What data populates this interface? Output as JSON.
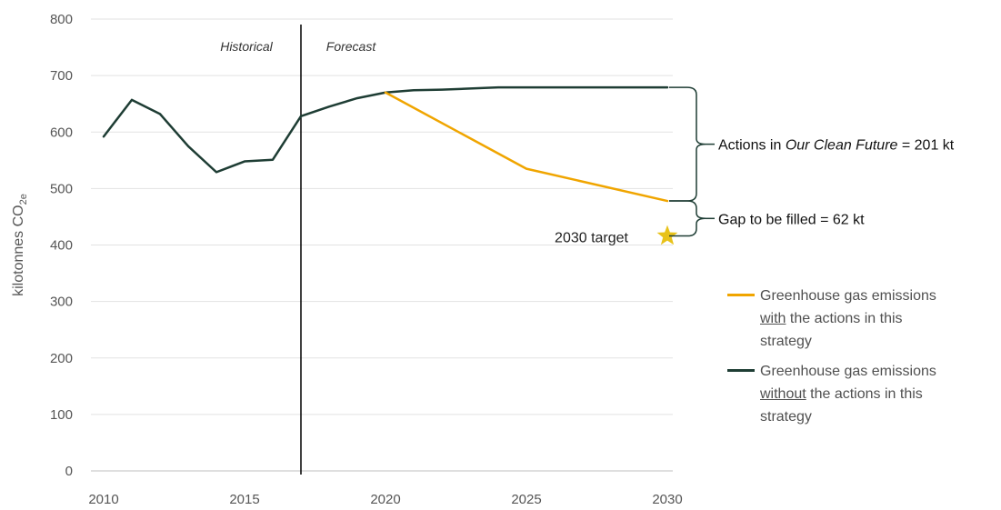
{
  "chart_data": {
    "type": "line",
    "xlim": [
      2010,
      2030
    ],
    "ylim": [
      0,
      800
    ],
    "x_ticks": [
      "2010",
      "2015",
      "2020",
      "2025",
      "2030"
    ],
    "y_ticks": [
      "0",
      "100",
      "200",
      "300",
      "400",
      "500",
      "600",
      "700",
      "800"
    ],
    "ylabel_main": "kilotonnes CO",
    "ylabel_sub": "2e",
    "grid": true,
    "divider_x": 2017,
    "region_labels": {
      "historical": "Historical",
      "forecast": "Forecast"
    },
    "series": [
      {
        "key": "without",
        "color": "#1e3d34",
        "points": [
          [
            2010,
            592
          ],
          [
            2011,
            657
          ],
          [
            2012,
            632
          ],
          [
            2013,
            575
          ],
          [
            2014,
            529
          ],
          [
            2015,
            548
          ],
          [
            2016,
            551
          ],
          [
            2017,
            628
          ],
          [
            2018,
            645
          ],
          [
            2019,
            660
          ],
          [
            2020,
            670
          ],
          [
            2021,
            674
          ],
          [
            2022,
            675
          ],
          [
            2023,
            677
          ],
          [
            2024,
            679
          ],
          [
            2025,
            679
          ],
          [
            2026,
            679
          ],
          [
            2027,
            679
          ],
          [
            2028,
            679
          ],
          [
            2029,
            679
          ],
          [
            2030,
            679
          ]
        ]
      },
      {
        "key": "with",
        "color": "#f0a500",
        "points": [
          [
            2020,
            670
          ],
          [
            2025,
            535
          ],
          [
            2030,
            478
          ]
        ]
      }
    ],
    "target": {
      "label": "2030 target",
      "x": 2030,
      "y": 416,
      "color": "#e8c21a"
    },
    "annotations": [
      {
        "key": "actions",
        "y_from": 478,
        "y_to": 679,
        "parts": [
          "Actions in ",
          "Our Clean Future",
          " = 201 kt"
        ]
      },
      {
        "key": "gap",
        "y_from": 416,
        "y_to": 478,
        "parts": [
          "Gap to be filled = 62 kt"
        ]
      }
    ]
  },
  "legend": [
    {
      "color": "#f0a500",
      "line1_pre": "Greenhouse gas emissions",
      "line2_u": "with",
      "line2_rest": " the actions in this",
      "line3": "strategy"
    },
    {
      "color": "#1e3d34",
      "line1_pre": "Greenhouse gas emissions",
      "line2_u": "without",
      "line2_rest": " the actions in this",
      "line3": "strategy"
    }
  ]
}
